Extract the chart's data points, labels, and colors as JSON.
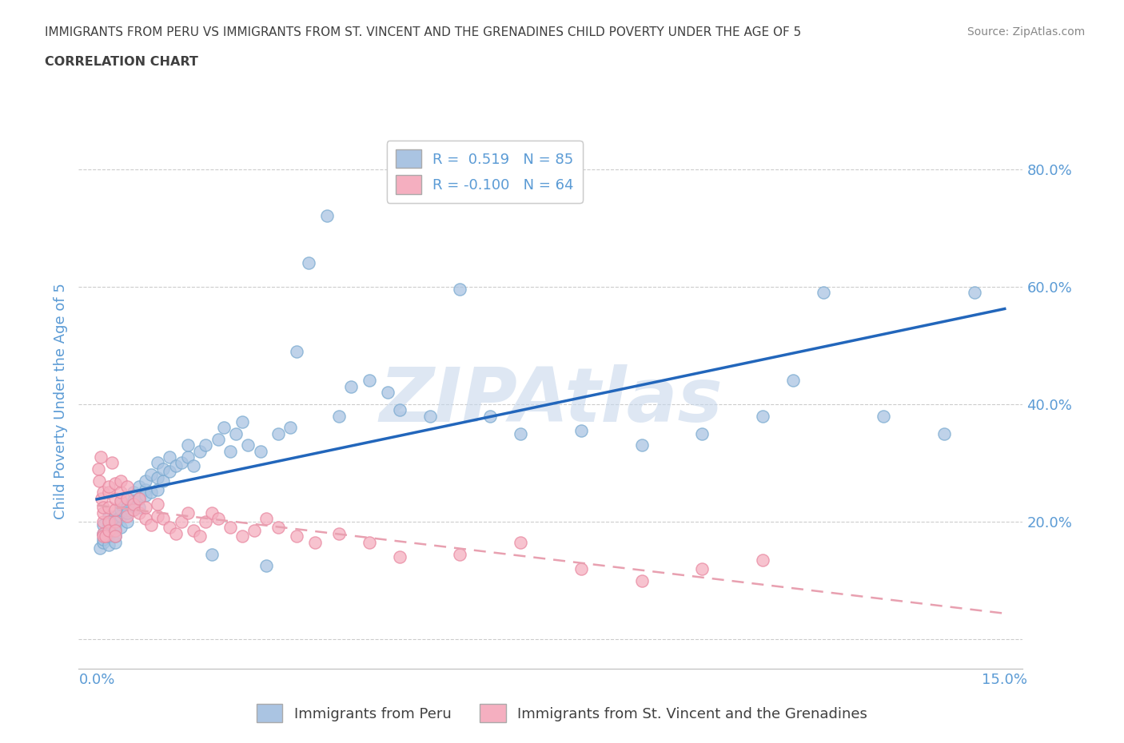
{
  "title_line1": "IMMIGRANTS FROM PERU VS IMMIGRANTS FROM ST. VINCENT AND THE GRENADINES CHILD POVERTY UNDER THE AGE OF 5",
  "title_line2": "CORRELATION CHART",
  "source_text": "Source: ZipAtlas.com",
  "ylabel": "Child Poverty Under the Age of 5",
  "peru_color": "#aac4e2",
  "peru_edge_color": "#7aaad0",
  "stvg_color": "#f5afc0",
  "stvg_edge_color": "#e888a0",
  "peru_line_color": "#2266bb",
  "stvg_line_color": "#e8a0b0",
  "peru_R": 0.519,
  "peru_N": 85,
  "stvg_R": -0.1,
  "stvg_N": 64,
  "legend_label_peru": "Immigrants from Peru",
  "legend_label_stvg": "Immigrants from St. Vincent and the Grenadines",
  "watermark": "ZIPAtlas",
  "watermark_color": "#c8d8ec",
  "grid_color": "#cccccc",
  "title_color": "#404040",
  "axis_label_color": "#5b9bd5",
  "peru_scatter_x": [
    0.0005,
    0.001,
    0.001,
    0.001,
    0.001,
    0.0015,
    0.002,
    0.002,
    0.002,
    0.002,
    0.002,
    0.0025,
    0.003,
    0.003,
    0.003,
    0.003,
    0.003,
    0.003,
    0.003,
    0.0035,
    0.004,
    0.004,
    0.004,
    0.004,
    0.005,
    0.005,
    0.005,
    0.005,
    0.006,
    0.006,
    0.006,
    0.007,
    0.007,
    0.007,
    0.008,
    0.008,
    0.008,
    0.009,
    0.009,
    0.01,
    0.01,
    0.01,
    0.011,
    0.011,
    0.012,
    0.012,
    0.013,
    0.014,
    0.015,
    0.015,
    0.016,
    0.017,
    0.018,
    0.019,
    0.02,
    0.021,
    0.022,
    0.023,
    0.024,
    0.025,
    0.027,
    0.028,
    0.03,
    0.032,
    0.033,
    0.035,
    0.038,
    0.04,
    0.042,
    0.045,
    0.048,
    0.05,
    0.055,
    0.06,
    0.065,
    0.07,
    0.08,
    0.09,
    0.1,
    0.11,
    0.115,
    0.12,
    0.13,
    0.14,
    0.145
  ],
  "peru_scatter_y": [
    0.155,
    0.165,
    0.18,
    0.17,
    0.195,
    0.175,
    0.16,
    0.18,
    0.195,
    0.21,
    0.175,
    0.2,
    0.185,
    0.165,
    0.195,
    0.21,
    0.2,
    0.19,
    0.175,
    0.205,
    0.19,
    0.21,
    0.22,
    0.23,
    0.2,
    0.225,
    0.215,
    0.24,
    0.22,
    0.25,
    0.235,
    0.24,
    0.26,
    0.225,
    0.255,
    0.245,
    0.27,
    0.25,
    0.28,
    0.275,
    0.255,
    0.3,
    0.27,
    0.29,
    0.285,
    0.31,
    0.295,
    0.3,
    0.31,
    0.33,
    0.295,
    0.32,
    0.33,
    0.145,
    0.34,
    0.36,
    0.32,
    0.35,
    0.37,
    0.33,
    0.32,
    0.125,
    0.35,
    0.36,
    0.49,
    0.64,
    0.72,
    0.38,
    0.43,
    0.44,
    0.42,
    0.39,
    0.38,
    0.595,
    0.38,
    0.35,
    0.355,
    0.33,
    0.35,
    0.38,
    0.44,
    0.59,
    0.38,
    0.35,
    0.59
  ],
  "stvg_scatter_x": [
    0.0002,
    0.0004,
    0.0006,
    0.0008,
    0.001,
    0.001,
    0.001,
    0.001,
    0.001,
    0.001,
    0.0015,
    0.002,
    0.002,
    0.002,
    0.002,
    0.002,
    0.0025,
    0.003,
    0.003,
    0.003,
    0.003,
    0.003,
    0.003,
    0.004,
    0.004,
    0.004,
    0.005,
    0.005,
    0.005,
    0.006,
    0.006,
    0.007,
    0.007,
    0.008,
    0.008,
    0.009,
    0.01,
    0.01,
    0.011,
    0.012,
    0.013,
    0.014,
    0.015,
    0.016,
    0.017,
    0.018,
    0.019,
    0.02,
    0.022,
    0.024,
    0.026,
    0.028,
    0.03,
    0.033,
    0.036,
    0.04,
    0.045,
    0.05,
    0.06,
    0.07,
    0.08,
    0.09,
    0.1,
    0.11
  ],
  "stvg_scatter_y": [
    0.29,
    0.27,
    0.31,
    0.24,
    0.2,
    0.215,
    0.18,
    0.225,
    0.25,
    0.175,
    0.175,
    0.2,
    0.225,
    0.185,
    0.25,
    0.26,
    0.3,
    0.2,
    0.22,
    0.24,
    0.265,
    0.185,
    0.175,
    0.235,
    0.25,
    0.27,
    0.24,
    0.21,
    0.26,
    0.22,
    0.23,
    0.215,
    0.24,
    0.205,
    0.225,
    0.195,
    0.21,
    0.23,
    0.205,
    0.19,
    0.18,
    0.2,
    0.215,
    0.185,
    0.175,
    0.2,
    0.215,
    0.205,
    0.19,
    0.175,
    0.185,
    0.205,
    0.19,
    0.175,
    0.165,
    0.18,
    0.165,
    0.14,
    0.145,
    0.165,
    0.12,
    0.1,
    0.12,
    0.135
  ]
}
